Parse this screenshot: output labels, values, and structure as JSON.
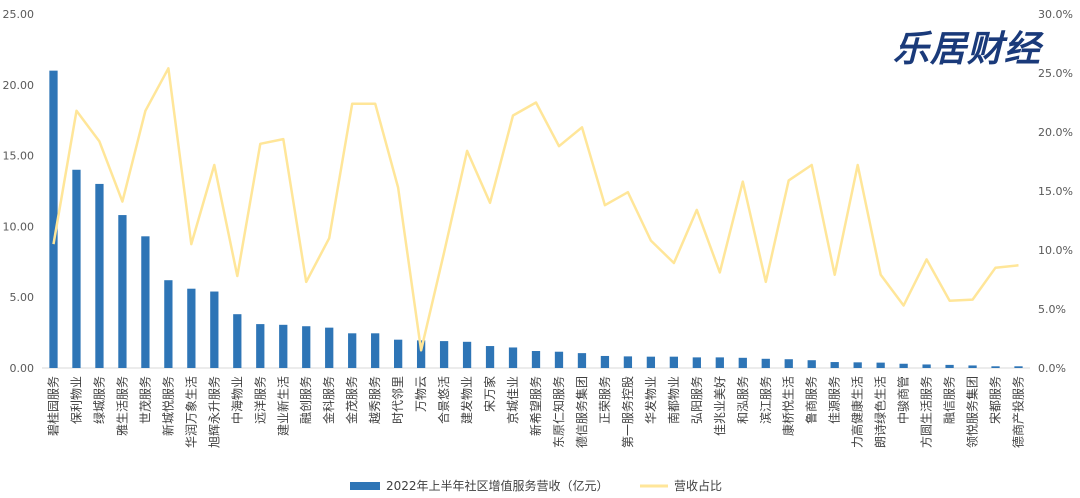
{
  "logo_text": "乐居财经",
  "chart_data": {
    "type": "bar",
    "categories": [
      "碧桂园服务",
      "保利物业",
      "绿城服务",
      "雅生活服务",
      "世茂服务",
      "新城悦服务",
      "华润万象生活",
      "旭辉永升服务",
      "中海物业",
      "远洋服务",
      "建业新生活",
      "融创服务",
      "金科服务",
      "金茂服务",
      "越秀服务",
      "时代邻里",
      "万物云",
      "合景悠活",
      "建发物业",
      "宋万家",
      "京城佳业",
      "新希望服务",
      "东原仁知服务",
      "德信服务集团",
      "正荣服务",
      "第一服务控股",
      "华发物业",
      "南都物业",
      "弘阳服务",
      "佳兆业美好",
      "和泓服务",
      "滨江服务",
      "康桥悦生活",
      "鲁商服务",
      "佳源服务",
      "力高健康生活",
      "朗诗绿色生活",
      "中骏商管",
      "方圆生活服务",
      "融信服务",
      "领悦服务集团",
      "宋都服务",
      "德商产投服务"
    ],
    "series": [
      {
        "name": "2022年上半年社区增值服务营收（亿元）",
        "type": "bar",
        "axis": "left",
        "color": "#2e75b6",
        "values": [
          21.0,
          14.0,
          13.0,
          10.8,
          9.3,
          6.2,
          5.6,
          5.4,
          3.8,
          3.1,
          3.05,
          2.95,
          2.85,
          2.45,
          2.45,
          2.0,
          1.95,
          1.9,
          1.85,
          1.55,
          1.45,
          1.2,
          1.15,
          1.05,
          0.85,
          0.82,
          0.8,
          0.8,
          0.75,
          0.75,
          0.72,
          0.65,
          0.62,
          0.55,
          0.42,
          0.4,
          0.38,
          0.3,
          0.25,
          0.22,
          0.18,
          0.12,
          0.12
        ]
      },
      {
        "name": "营收占比",
        "type": "line",
        "axis": "right",
        "color": "#ffe699",
        "values": [
          10.5,
          21.8,
          19.2,
          14.1,
          21.8,
          25.4,
          10.5,
          17.2,
          7.8,
          19.0,
          19.4,
          7.3,
          11.0,
          22.4,
          22.4,
          15.3,
          1.5,
          9.8,
          18.4,
          14.0,
          21.4,
          22.5,
          18.8,
          20.4,
          13.8,
          14.9,
          10.8,
          8.9,
          13.4,
          8.1,
          15.8,
          7.3,
          15.9,
          17.2,
          7.9,
          17.2,
          7.9,
          5.3,
          9.2,
          5.7,
          5.8,
          8.5,
          8.7
        ]
      }
    ],
    "ylim_left": [
      0,
      25
    ],
    "yticks_left": [
      "0.00",
      "5.00",
      "10.00",
      "15.00",
      "20.00",
      "25.00"
    ],
    "ylim_right": [
      0,
      30
    ],
    "yticks_right": [
      "0.0%",
      "5.0%",
      "10.0%",
      "15.0%",
      "20.0%",
      "25.0%",
      "30.0%"
    ],
    "grid": false,
    "legend": "bottom"
  }
}
